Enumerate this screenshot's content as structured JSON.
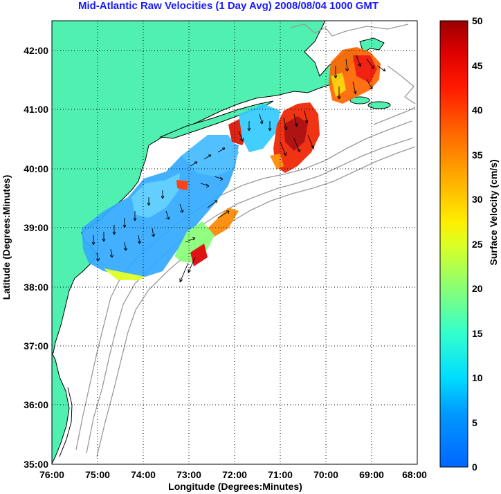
{
  "title": "Mid-Atlantic Raw Velocities (1 Day Avg) 2008/08/04 1000 GMT",
  "x_axis": {
    "label": "Longitude (Degrees:Minutes)",
    "range": [
      -76,
      -68
    ],
    "ticks": [
      "76:00",
      "75:00",
      "74:00",
      "73:00",
      "72:00",
      "71:00",
      "70:00",
      "69:00",
      "68:00"
    ]
  },
  "y_axis": {
    "label": "Latitude (Degrees:Minutes)",
    "range": [
      35,
      42.5
    ],
    "ticks": [
      "35:00",
      "36:00",
      "37:00",
      "38:00",
      "39:00",
      "40:00",
      "41:00",
      "42:00"
    ]
  },
  "colorbar": {
    "label": "Surface Velocity (cm/s)",
    "min": 0,
    "max": 50,
    "ticks": [
      "0",
      "5",
      "10",
      "15",
      "20",
      "25",
      "30",
      "35",
      "40",
      "45",
      "50"
    ]
  },
  "colors": {
    "land": "#50f0b0",
    "bathymetry": "#999999",
    "title": "#1a1aff",
    "grid": "#000000"
  },
  "grid": "dotted"
}
